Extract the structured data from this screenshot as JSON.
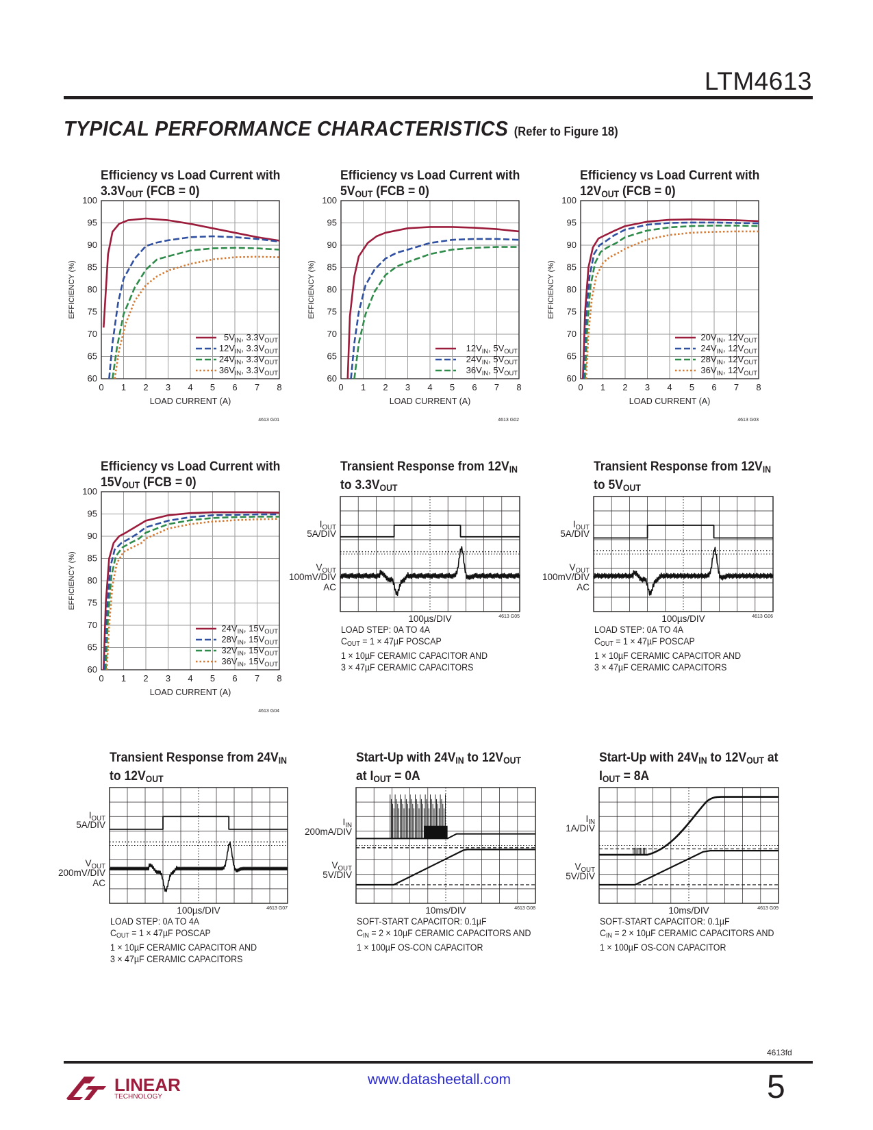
{
  "header": {
    "part_number": "LTM4613",
    "section_title": "TYPICAL PERFORMANCE CHARACTERISTICS",
    "section_note": "(Refer to Figure 18)"
  },
  "footer": {
    "doc_code": "4613fd",
    "url": "www.datasheetall.com",
    "page_number": "5",
    "logo_text": "LINEAR",
    "logo_sub": "TECHNOLOGY"
  },
  "colors": {
    "red": "#9c1c3c",
    "blue": "#2f4fa0",
    "green": "#2e8b4a",
    "orange": "#d47a33"
  },
  "chart_data": [
    {
      "type": "line",
      "id": "G01",
      "title_parts": [
        "Efficiency vs Load Current with",
        "3.3V",
        "OUT",
        " (FCB = 0)"
      ],
      "xlabel": "LOAD CURRENT (A)",
      "ylabel": "EFFICIENCY (%)",
      "xlim": [
        0,
        8
      ],
      "ylim": [
        60,
        100
      ],
      "xticks": [
        0,
        1,
        2,
        3,
        4,
        5,
        6,
        7,
        8
      ],
      "yticks": [
        60,
        65,
        70,
        75,
        80,
        85,
        90,
        95,
        100
      ],
      "figure_code": "4613 G01",
      "legend_position": "bottom-right",
      "series": [
        {
          "name": "5VIN, 3.3VOUT",
          "label_parts": [
            "5V",
            "IN",
            ", 3.3V",
            "OUT"
          ],
          "color": "red",
          "style": "solid",
          "x": [
            0.1,
            0.3,
            0.5,
            0.8,
            1.2,
            2,
            3,
            4,
            5,
            6,
            7,
            8
          ],
          "y": [
            71.5,
            88,
            93,
            94.8,
            95.6,
            96,
            95.6,
            94.8,
            93.8,
            92.8,
            91.8,
            91
          ]
        },
        {
          "name": "12VIN, 3.3VOUT",
          "label_parts": [
            "12V",
            "IN",
            ", 3.3V",
            "OUT"
          ],
          "color": "blue",
          "style": "dashed",
          "x": [
            0.35,
            0.5,
            0.75,
            1,
            1.5,
            2,
            2.5,
            3,
            4,
            5,
            6,
            7,
            8
          ],
          "y": [
            60,
            68,
            77,
            82.5,
            87,
            89.8,
            90.6,
            91.1,
            91.8,
            92,
            91.8,
            91.4,
            90.8
          ]
        },
        {
          "name": "24VIN, 3.3VOUT",
          "label_parts": [
            "24V",
            "IN",
            ", 3.3V",
            "OUT"
          ],
          "color": "green",
          "style": "dashed",
          "x": [
            0.5,
            0.7,
            1,
            1.5,
            2,
            2.5,
            3,
            4,
            5,
            6,
            7,
            8
          ],
          "y": [
            60,
            67,
            74.5,
            80.5,
            84.5,
            86.8,
            87.5,
            88.8,
            89.3,
            89.4,
            89.3,
            89
          ]
        },
        {
          "name": "36VIN, 3.3VOUT",
          "label_parts": [
            "36V",
            "IN",
            ", 3.3V",
            "OUT"
          ],
          "color": "orange",
          "style": "dotted",
          "x": [
            0.6,
            0.8,
            1.1,
            1.5,
            2,
            2.5,
            3,
            4,
            5,
            6,
            7,
            8
          ],
          "y": [
            60,
            66.5,
            72.5,
            77.5,
            81,
            83,
            84.3,
            85.8,
            86.8,
            87.3,
            87.4,
            87.3
          ]
        }
      ]
    },
    {
      "type": "line",
      "id": "G02",
      "title_parts": [
        "Efficiency vs Load Current with",
        "5V",
        "OUT",
        " (FCB = 0)"
      ],
      "xlabel": "LOAD CURRENT (A)",
      "ylabel": "EFFICIENCY (%)",
      "xlim": [
        0,
        8
      ],
      "ylim": [
        60,
        100
      ],
      "xticks": [
        0,
        1,
        2,
        3,
        4,
        5,
        6,
        7,
        8
      ],
      "yticks": [
        60,
        65,
        70,
        75,
        80,
        85,
        90,
        95,
        100
      ],
      "figure_code": "4613 G02",
      "legend_position": "bottom-right",
      "series": [
        {
          "name": "12VIN, 5VOUT",
          "label_parts": [
            "12V",
            "IN",
            ", 5V",
            "OUT"
          ],
          "color": "red",
          "style": "solid",
          "x": [
            0.3,
            0.4,
            0.6,
            0.8,
            1.2,
            1.6,
            2,
            3,
            4,
            5,
            6,
            7,
            8
          ],
          "y": [
            60,
            74,
            83,
            87.5,
            90.5,
            92,
            92.8,
            93.8,
            94.1,
            94.1,
            93.9,
            93.6,
            93.1
          ]
        },
        {
          "name": "24VIN, 5VOUT",
          "label_parts": [
            "24V",
            "IN",
            ", 5V",
            "OUT"
          ],
          "color": "blue",
          "style": "dashed",
          "x": [
            0.45,
            0.6,
            0.8,
            1.1,
            1.5,
            2,
            2.5,
            3,
            4,
            5,
            6,
            7,
            8
          ],
          "y": [
            60,
            68,
            75,
            81,
            84.5,
            87,
            88.3,
            89,
            90.5,
            91.2,
            91.4,
            91.4,
            91.2
          ]
        },
        {
          "name": "36VIN, 5VOUT",
          "label_parts": [
            "36V",
            "IN",
            ", 5V",
            "OUT"
          ],
          "color": "green",
          "style": "dashed",
          "x": [
            0.6,
            0.8,
            1.1,
            1.5,
            2,
            2.5,
            3,
            4,
            5,
            6,
            7,
            8
          ],
          "y": [
            60,
            68,
            74.5,
            79.5,
            83.3,
            85.2,
            86.2,
            88,
            89,
            89.4,
            89.6,
            89.6
          ]
        }
      ]
    },
    {
      "type": "line",
      "id": "G03",
      "title_parts": [
        "Efficiency vs Load Current with",
        "12V",
        "OUT",
        " (FCB = 0)"
      ],
      "xlabel": "LOAD CURRENT (A)",
      "ylabel": "EFFICIENCY (%)",
      "xlim": [
        0,
        8
      ],
      "ylim": [
        60,
        100
      ],
      "xticks": [
        0,
        1,
        2,
        3,
        4,
        5,
        6,
        7,
        8
      ],
      "yticks": [
        60,
        65,
        70,
        75,
        80,
        85,
        90,
        95,
        100
      ],
      "figure_code": "4613 G03",
      "legend_position": "bottom-right",
      "series": [
        {
          "name": "20VIN, 12VOUT",
          "label_parts": [
            "20V",
            "IN",
            ", 12V",
            "OUT"
          ],
          "color": "red",
          "style": "solid",
          "x": [
            0.1,
            0.2,
            0.35,
            0.55,
            0.8,
            1,
            1.5,
            2,
            3,
            4,
            5,
            6,
            7,
            8
          ],
          "y": [
            60,
            75,
            85,
            89.5,
            91.5,
            92,
            93.2,
            94.3,
            95.3,
            95.7,
            95.8,
            95.7,
            95.6,
            95.4
          ]
        },
        {
          "name": "24VIN, 12VOUT",
          "label_parts": [
            "24V",
            "IN",
            ", 12V",
            "OUT"
          ],
          "color": "blue",
          "style": "dashed",
          "x": [
            0.15,
            0.25,
            0.4,
            0.6,
            0.85,
            1.1,
            1.5,
            2,
            3,
            4,
            5,
            6,
            7,
            8
          ],
          "y": [
            60,
            74,
            83,
            88,
            90,
            90.8,
            92.2,
            93.5,
            94.6,
            95,
            95.1,
            95.1,
            95,
            94.9
          ]
        },
        {
          "name": "28VIN, 12VOUT",
          "label_parts": [
            "28V",
            "IN",
            ", 12V",
            "OUT"
          ],
          "color": "green",
          "style": "dashed",
          "x": [
            0.2,
            0.3,
            0.45,
            0.65,
            0.9,
            1.2,
            1.6,
            2,
            3,
            4,
            5,
            6,
            7,
            8
          ],
          "y": [
            60,
            72,
            81,
            86,
            88.5,
            89.5,
            90.5,
            91.8,
            93.3,
            94,
            94.3,
            94.4,
            94.4,
            94.3
          ]
        },
        {
          "name": "36VIN, 12VOUT",
          "label_parts": [
            "36V",
            "IN",
            ", 12V",
            "OUT"
          ],
          "color": "orange",
          "style": "dotted",
          "x": [
            0.25,
            0.35,
            0.5,
            0.7,
            1,
            1.3,
            1.7,
            2,
            3,
            4,
            5,
            6,
            7,
            8
          ],
          "y": [
            60,
            70,
            78,
            83,
            86,
            87.3,
            88.3,
            89.2,
            91.3,
            92.3,
            92.8,
            93,
            93.1,
            93.1
          ]
        }
      ]
    },
    {
      "type": "line",
      "id": "G04",
      "title_parts": [
        "Efficiency vs Load Current with",
        "15V",
        "OUT",
        " (FCB = 0)"
      ],
      "xlabel": "LOAD CURRENT (A)",
      "ylabel": "EFFICIENCY (%)",
      "xlim": [
        0,
        8
      ],
      "ylim": [
        60,
        100
      ],
      "xticks": [
        0,
        1,
        2,
        3,
        4,
        5,
        6,
        7,
        8
      ],
      "yticks": [
        60,
        65,
        70,
        75,
        80,
        85,
        90,
        95,
        100
      ],
      "figure_code": "4613 G04",
      "legend_position": "bottom-right",
      "series": [
        {
          "name": "24VIN, 15VOUT",
          "label_parts": [
            "24V",
            "IN",
            ", 15V",
            "OUT"
          ],
          "color": "red",
          "style": "solid",
          "x": [
            0.1,
            0.2,
            0.35,
            0.55,
            0.8,
            1.1,
            1.5,
            2,
            3,
            4,
            5,
            6,
            7,
            8
          ],
          "y": [
            60,
            75,
            85,
            88.5,
            90,
            90.8,
            92,
            93.5,
            94.7,
            95.2,
            95.4,
            95.4,
            95.4,
            95.3
          ]
        },
        {
          "name": "28VIN, 15VOUT",
          "label_parts": [
            "28V",
            "IN",
            ", 15V",
            "OUT"
          ],
          "color": "blue",
          "style": "dashed",
          "x": [
            0.15,
            0.25,
            0.4,
            0.6,
            0.9,
            1.2,
            1.6,
            2,
            3,
            4,
            5,
            6,
            7,
            8
          ],
          "y": [
            60,
            73,
            83,
            87,
            88.5,
            89.3,
            90.5,
            92,
            93.5,
            94.3,
            94.7,
            94.8,
            94.9,
            94.9
          ]
        },
        {
          "name": "32VIN, 15VOUT",
          "label_parts": [
            "32V",
            "IN",
            ", 15V",
            "OUT"
          ],
          "color": "green",
          "style": "dashed",
          "x": [
            0.2,
            0.3,
            0.45,
            0.65,
            0.95,
            1.3,
            1.7,
            2,
            3,
            4,
            5,
            6,
            7,
            8
          ],
          "y": [
            60,
            72,
            81,
            85.5,
            87.5,
            88.5,
            89.5,
            90.8,
            92.7,
            93.6,
            94.1,
            94.3,
            94.4,
            94.4
          ]
        },
        {
          "name": "36VIN, 15VOUT",
          "label_parts": [
            "36V",
            "IN",
            ", 15V",
            "OUT"
          ],
          "color": "orange",
          "style": "dotted",
          "x": [
            0.25,
            0.35,
            0.5,
            0.7,
            1,
            1.4,
            1.8,
            2,
            3,
            4,
            5,
            6,
            7,
            8
          ],
          "y": [
            60,
            70,
            79,
            84,
            86.5,
            87.5,
            88.5,
            89.5,
            91.7,
            92.7,
            93.3,
            93.6,
            93.8,
            93.9
          ]
        }
      ]
    }
  ],
  "scopes": [
    {
      "id": "G05",
      "title_parts": [
        [
          "Transient Response from 12V",
          "IN",
          ""
        ],
        [
          "to 3.3V",
          "OUT",
          ""
        ]
      ],
      "time_div": "100µs/DIV",
      "figure_code": "4613 G05",
      "labels": [
        {
          "parts": [
            "I",
            "OUT",
            ""
          ],
          "line2": "5A/DIV"
        },
        {
          "parts": [
            "V",
            "OUT",
            ""
          ],
          "line2": "100mV/DIV",
          "line3": "AC"
        }
      ],
      "notes": [
        {
          "parts": [
            "LOAD STEP: 0A TO 4A"
          ]
        },
        {
          "parts": [
            "C",
            "OUT",
            " = 1 × 47µF POSCAP"
          ]
        },
        {
          "parts": [
            "1 × 10µF CERAMIC CAPACITOR AND"
          ]
        },
        {
          "parts": [
            "3 × 47µF CERAMIC CAPACITORS"
          ]
        }
      ]
    },
    {
      "id": "G06",
      "title_parts": [
        [
          "Transient Response from 12V",
          "IN",
          ""
        ],
        [
          "to 5V",
          "OUT",
          ""
        ]
      ],
      "time_div": "100µs/DIV",
      "figure_code": "4613 G06",
      "labels": [
        {
          "parts": [
            "I",
            "OUT",
            ""
          ],
          "line2": "5A/DIV"
        },
        {
          "parts": [
            "V",
            "OUT",
            ""
          ],
          "line2": "100mV/DIV",
          "line3": "AC"
        }
      ],
      "notes": [
        {
          "parts": [
            "LOAD STEP: 0A TO 4A"
          ]
        },
        {
          "parts": [
            "C",
            "OUT",
            " = 1 × 47µF POSCAP"
          ]
        },
        {
          "parts": [
            "1 × 10µF CERAMIC CAPACITOR AND"
          ]
        },
        {
          "parts": [
            "3 × 47µF CERAMIC CAPACITORS"
          ]
        }
      ]
    },
    {
      "id": "G07",
      "title_parts": [
        [
          "Transient Response from 24V",
          "IN",
          ""
        ],
        [
          "to 12V",
          "OUT",
          ""
        ]
      ],
      "time_div": "100µs/DIV",
      "figure_code": "4613 G07",
      "labels": [
        {
          "parts": [
            "I",
            "OUT",
            ""
          ],
          "line2": "5A/DIV"
        },
        {
          "parts": [
            "V",
            "OUT",
            ""
          ],
          "line2": "200mV/DIV",
          "line3": "AC"
        }
      ],
      "notes": [
        {
          "parts": [
            "LOAD STEP: 0A TO 4A"
          ]
        },
        {
          "parts": [
            "C",
            "OUT",
            " = 1 × 47µF POSCAP"
          ]
        },
        {
          "parts": [
            "1 × 10µF CERAMIC CAPACITOR AND"
          ]
        },
        {
          "parts": [
            "3 × 47µF CERAMIC CAPACITORS"
          ]
        }
      ]
    },
    {
      "id": "G08",
      "title_parts": [
        [
          "Start-Up with 24V",
          "IN",
          " to 12V",
          "OUT",
          ""
        ],
        [
          "at I",
          "OUT",
          " = 0A"
        ]
      ],
      "time_div": "10ms/DIV",
      "figure_code": "4613 G08",
      "labels": [
        {
          "parts": [
            "I",
            "IN",
            ""
          ],
          "line2": "200mA/DIV"
        },
        {
          "parts": [
            "V",
            "OUT",
            ""
          ],
          "line2": "5V/DIV"
        }
      ],
      "notes": [
        {
          "parts": [
            "SOFT-START CAPACITOR: 0.1µF"
          ]
        },
        {
          "parts": [
            "C",
            "IN",
            " = 2 × 10µF CERAMIC CAPACITORS AND"
          ]
        },
        {
          "parts": [
            "1 × 100µF OS-CON CAPACITOR"
          ]
        }
      ]
    },
    {
      "id": "G09",
      "title_parts": [
        [
          "Start-Up with 24V",
          "IN",
          " to 12V",
          "OUT",
          " at"
        ],
        [
          "I",
          "OUT",
          " = 8A"
        ]
      ],
      "time_div": "10ms/DIV",
      "figure_code": "4613 G09",
      "labels": [
        {
          "parts": [
            "I",
            "IN",
            ""
          ],
          "line2": "1A/DIV"
        },
        {
          "parts": [
            "V",
            "OUT",
            ""
          ],
          "line2": "5V/DIV"
        }
      ],
      "notes": [
        {
          "parts": [
            "SOFT-START CAPACITOR: 0.1µF"
          ]
        },
        {
          "parts": [
            "C",
            "IN",
            " = 2 × 10µF CERAMIC CAPACITORS AND"
          ]
        },
        {
          "parts": [
            "1 × 100µF OS-CON CAPACITOR"
          ]
        }
      ]
    }
  ]
}
